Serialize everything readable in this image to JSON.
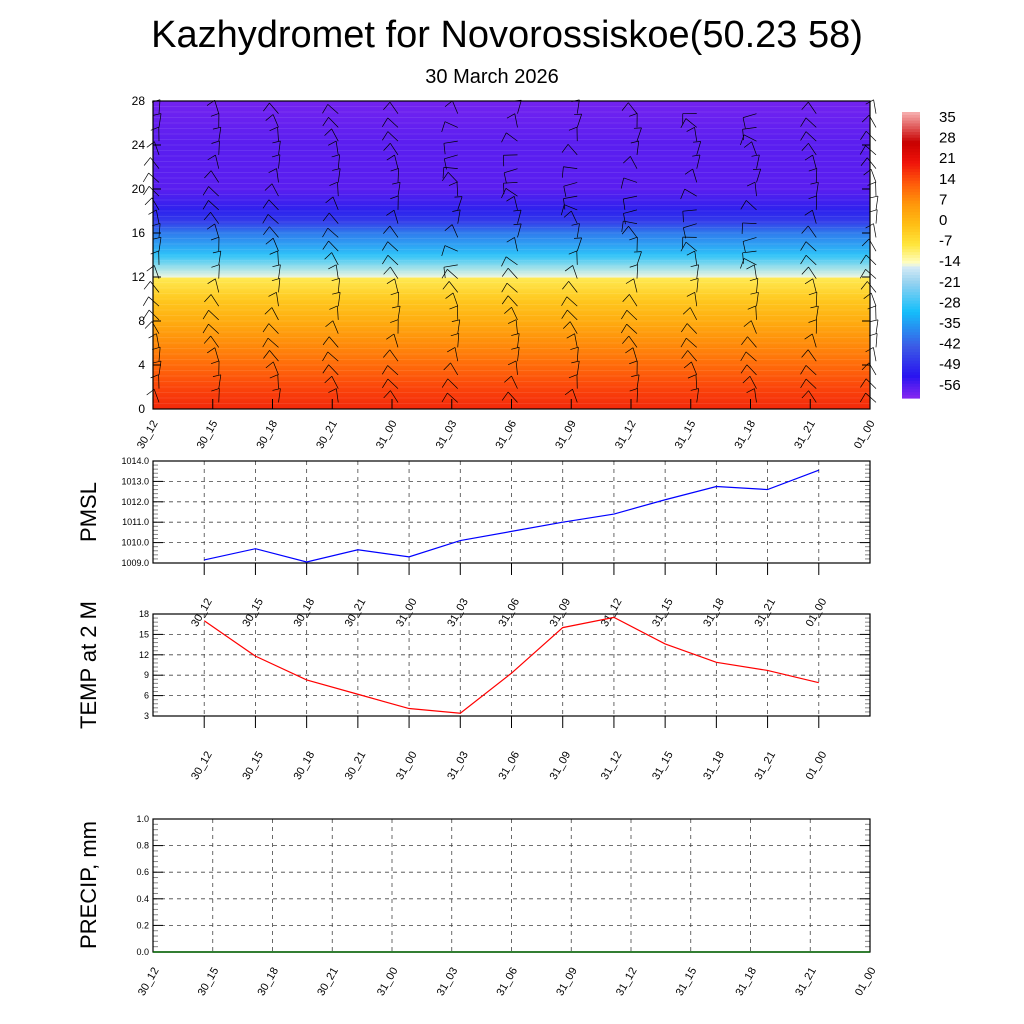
{
  "title": "Kazhydromet for Novorossiskoe(50.23 58)",
  "subtitle": "30 March 2026",
  "colors": {
    "pmsl": "#0000ff",
    "temp": "#ff0000",
    "precip": "#006400"
  },
  "chart_data": [
    {
      "type": "heatmap",
      "name": "vertical temperature cross-section with wind barbs",
      "x_ticks": [
        "30_12",
        "30_15",
        "30_18",
        "30_21",
        "31_00",
        "31_03",
        "31_06",
        "31_09",
        "31_12",
        "31_15",
        "31_18",
        "31_21",
        "01_00"
      ],
      "y_ticks": [
        0,
        4,
        8,
        12,
        16,
        20,
        24,
        28
      ],
      "ylim": [
        0,
        28
      ],
      "levels": [
        0,
        2,
        4,
        6,
        8,
        10,
        11.9,
        12,
        14,
        16,
        17,
        18,
        20,
        24,
        28
      ],
      "temperature_profile": [
        19,
        16,
        12,
        8,
        3,
        -2,
        -8,
        -14,
        -28,
        -38,
        -46,
        -50,
        -56,
        -56,
        -58
      ],
      "colorbar": {
        "labels": [
          "35",
          "28",
          "21",
          "14",
          "7",
          "0",
          "-7",
          "-14",
          "-21",
          "-28",
          "-35",
          "-42",
          "-49",
          "-56"
        ],
        "range": [
          -60,
          38
        ]
      }
    },
    {
      "type": "line",
      "ylabel": "PMSL",
      "x": [
        "30_12",
        "30_15",
        "30_18",
        "30_21",
        "31_00",
        "31_03",
        "31_06",
        "31_09",
        "31_12",
        "31_15",
        "31_18",
        "31_21",
        "01_00"
      ],
      "values": [
        1009.15,
        1009.7,
        1009.05,
        1009.65,
        1009.3,
        1010.1,
        1010.55,
        1011.0,
        1011.4,
        1012.1,
        1012.75,
        1012.6,
        1013.55
      ],
      "ylim": [
        1009,
        1014
      ],
      "y_ticks": [
        "1009.0",
        "1010.0",
        "1011.0",
        "1012.0",
        "1013.0",
        "1014.0"
      ],
      "grid": true
    },
    {
      "type": "line",
      "ylabel": "TEMP at 2 M",
      "x": [
        "30_12",
        "30_15",
        "30_18",
        "30_21",
        "31_00",
        "31_03",
        "31_06",
        "31_09",
        "31_12",
        "31_15",
        "31_18",
        "31_21",
        "01_00"
      ],
      "values": [
        17.0,
        11.8,
        8.3,
        6.2,
        4.1,
        3.4,
        9.3,
        16.0,
        17.5,
        13.6,
        10.9,
        9.7,
        7.9
      ],
      "ylim": [
        3,
        18
      ],
      "y_ticks": [
        "3",
        "6",
        "9",
        "12",
        "15",
        "18"
      ],
      "grid": true
    },
    {
      "type": "line",
      "ylabel": "PRECIP, mm",
      "x": [
        "30_12",
        "30_15",
        "30_18",
        "30_21",
        "31_00",
        "31_03",
        "31_06",
        "31_09",
        "31_12",
        "31_15",
        "31_18",
        "31_21",
        "01_00"
      ],
      "values": [
        0,
        0,
        0,
        0,
        0,
        0,
        0,
        0,
        0,
        0,
        0,
        0,
        0
      ],
      "ylim": [
        0,
        1
      ],
      "y_ticks": [
        "0.0",
        "0.2",
        "0.4",
        "0.6",
        "0.8",
        "1.0"
      ],
      "grid": true
    }
  ]
}
